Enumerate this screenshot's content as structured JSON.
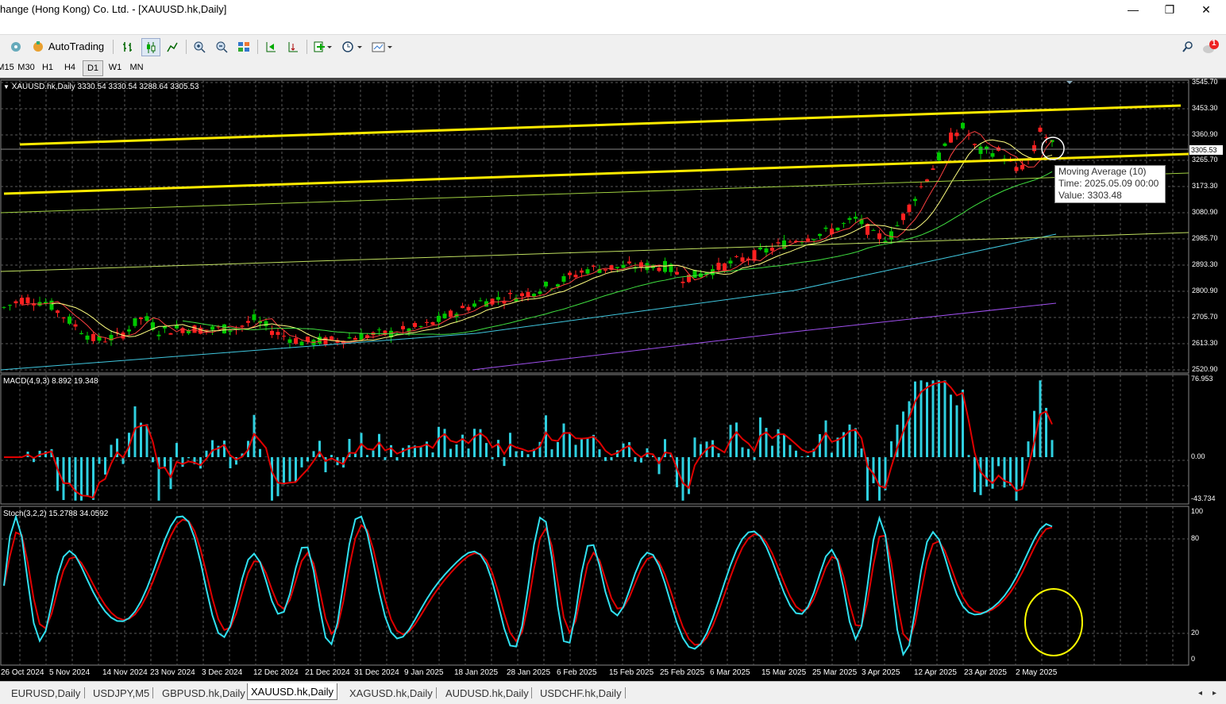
{
  "window": {
    "title": "hange (Hong Kong) Co. Ltd. - [XAUUSD.hk,Daily]",
    "minimize_glyph": "—",
    "maximize_glyph": "❐",
    "close_glyph": "✕",
    "mdi_minimize": "–",
    "mdi_restore": "❐",
    "mdi_close": "×"
  },
  "toolbar": {
    "autotrading_label": "AutoTrading",
    "notification_count": "1"
  },
  "timeframes": [
    "M15",
    "M30",
    "H1",
    "H4",
    "D1",
    "W1",
    "MN"
  ],
  "active_timeframe": "D1",
  "chart": {
    "header": "XAUUSD.hk,Daily  3330.54 3330.54 3288.64 3305.53",
    "price_axis": [
      "3545.70",
      "3453.30",
      "3360.90",
      "3265.70",
      "3173.30",
      "3080.90",
      "2985.70",
      "2893.30",
      "2800.90",
      "2705.70",
      "2613.30",
      "2520.90"
    ],
    "current_price": "3305.53",
    "date_axis": [
      "26 Oct 2024",
      "5 Nov 2024",
      "14 Nov 2024",
      "23 Nov 2024",
      "3 Dec 2024",
      "12 Dec 2024",
      "21 Dec 2024",
      "31 Dec 2024",
      "9 Jan 2025",
      "18 Jan 2025",
      "28 Jan 2025",
      "6 Feb 2025",
      "15 Feb 2025",
      "25 Feb 2025",
      "6 Mar 2025",
      "15 Mar 2025",
      "25 Mar 2025",
      "3 Apr 2025",
      "12 Apr 2025",
      "23 Apr 2025",
      "2 May 2025"
    ],
    "tooltip": {
      "line1": "Moving Average (10)",
      "line2": "Time: 2025.05.09 00:00",
      "line3": "Value: 3303.48"
    }
  },
  "macd": {
    "label": "MACD(4,9,3) 8.892 19.348",
    "axis": [
      "76.953",
      "0.00",
      "-43.734"
    ]
  },
  "stoch": {
    "label": "Stoch(3,2,2) 15.2788 34.0592",
    "axis": [
      "100",
      "80",
      "20",
      "0"
    ]
  },
  "tabs": [
    "EURUSD,Daily",
    "USDJPY,M5",
    "GBPUSD.hk,Daily",
    "XAUUSD.hk,Daily",
    "XAGUSD.hk,Daily",
    "AUDUSD.hk,Daily",
    "USDCHF.hk,Daily"
  ],
  "active_tab": "XAUUSD.hk,Daily",
  "colors": {
    "background": "#000000",
    "bull": "#00c800",
    "bear": "#ff2020",
    "trendline": "#ffea00",
    "macd_hist": "#2fd0e0",
    "signal": "#e00000",
    "stoch_main": "#30e0f0",
    "stoch_signal": "#e00000"
  }
}
